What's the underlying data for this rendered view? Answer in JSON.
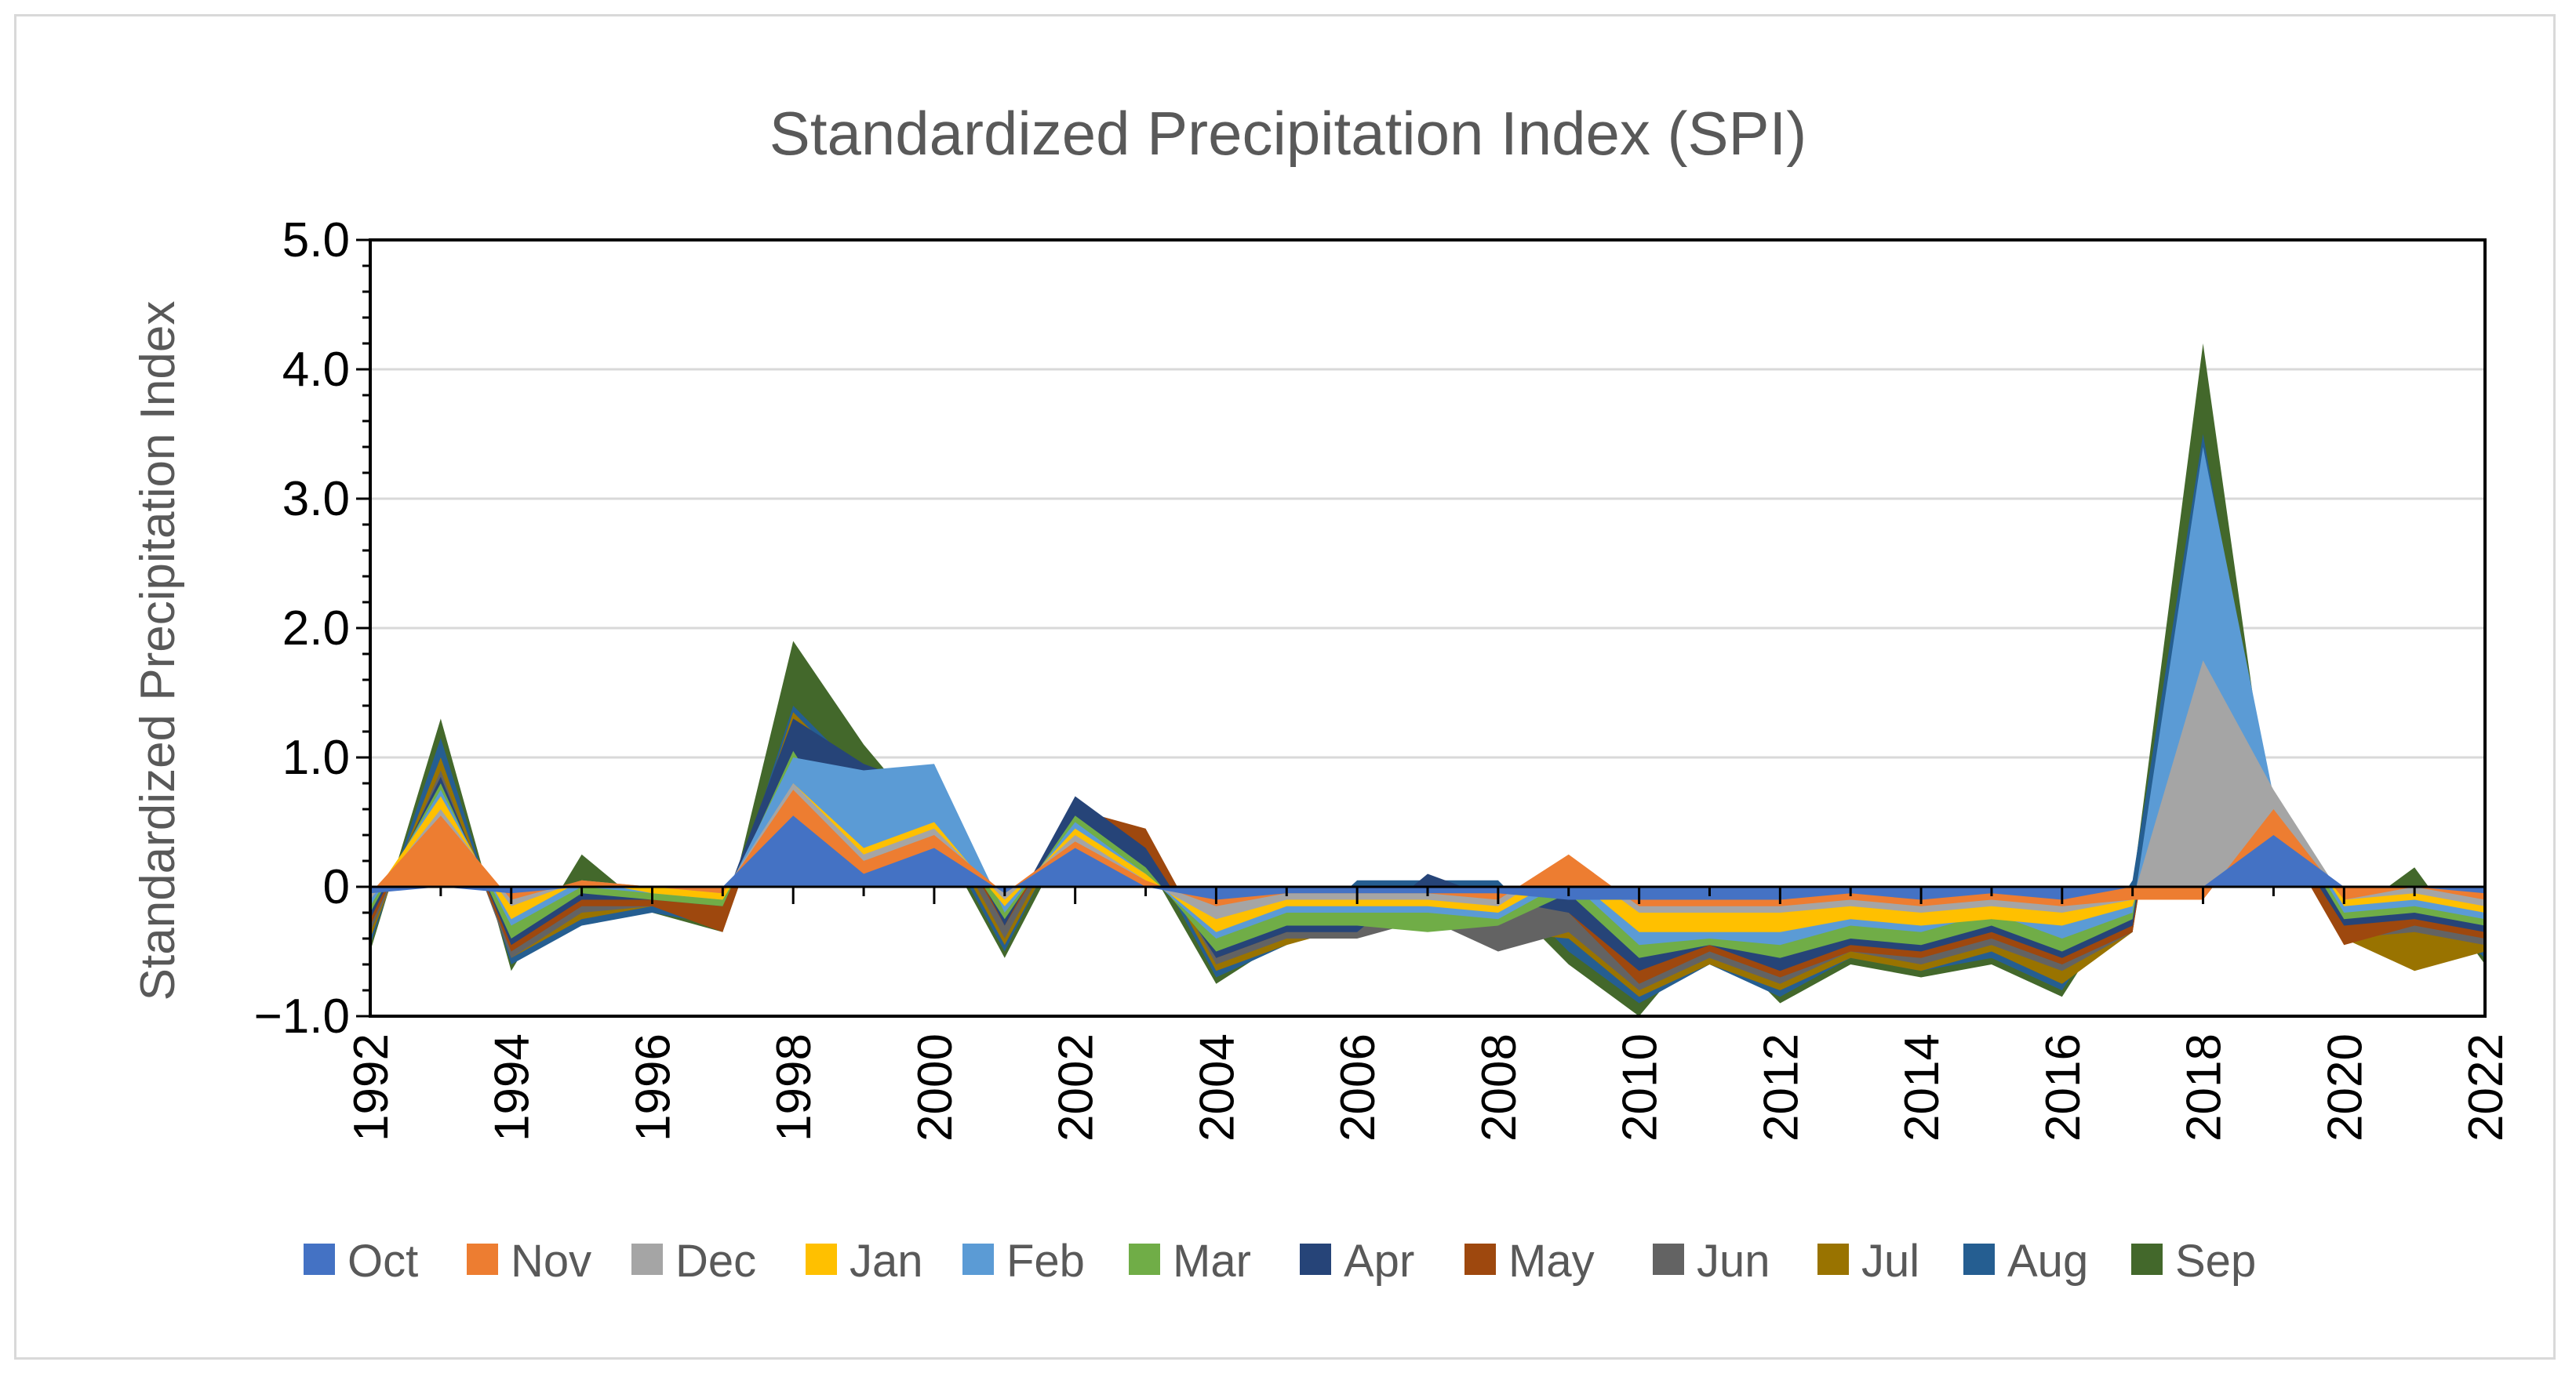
{
  "chart_data": {
    "type": "area",
    "title": "Standardized Precipitation Index (SPI)",
    "xlabel": "",
    "ylabel": "Standardized Precipitation Index",
    "ylim": [
      -1.0,
      5.0
    ],
    "xlim": [
      1992,
      2022
    ],
    "yticks": [
      {
        "value": 5,
        "label": "5.0"
      },
      {
        "value": 4,
        "label": "4.0"
      },
      {
        "value": 3,
        "label": "3.0"
      },
      {
        "value": 2,
        "label": "2.0"
      },
      {
        "value": 1,
        "label": "1.0"
      },
      {
        "value": 0,
        "label": "0"
      },
      {
        "value": -1,
        "label": "−1.0"
      }
    ],
    "xticks": [
      "1992",
      "1994",
      "1996",
      "1998",
      "2000",
      "2002",
      "2004",
      "2006",
      "2008",
      "2010",
      "2012",
      "2014",
      "2016",
      "2018",
      "2020",
      "2022"
    ],
    "grid": true,
    "legend_position": "bottom",
    "x": [
      1992,
      1993,
      1994,
      1995,
      1996,
      1997,
      1998,
      1999,
      2000,
      2001,
      2002,
      2003,
      2004,
      2005,
      2006,
      2007,
      2008,
      2009,
      2010,
      2011,
      2012,
      2013,
      2014,
      2015,
      2016,
      2017,
      2018,
      2019,
      2020,
      2021,
      2022
    ],
    "series": [
      {
        "name": "Oct",
        "color": "#4472C4",
        "values": [
          -0.05,
          0.0,
          -0.05,
          0.0,
          0.0,
          0.0,
          0.55,
          0.1,
          0.3,
          -0.05,
          0.3,
          0.0,
          -0.1,
          -0.05,
          -0.05,
          -0.05,
          -0.05,
          -0.1,
          -0.1,
          -0.1,
          -0.1,
          -0.05,
          -0.1,
          -0.05,
          -0.1,
          0.0,
          0.0,
          0.4,
          0.0,
          0.0,
          -0.05
        ]
      },
      {
        "name": "Nov",
        "color": "#ED7D31",
        "values": [
          -0.05,
          0.55,
          -0.1,
          0.05,
          0.0,
          -0.05,
          0.75,
          0.2,
          0.4,
          -0.05,
          0.35,
          0.05,
          -0.15,
          -0.05,
          -0.05,
          -0.05,
          -0.1,
          0.25,
          -0.15,
          -0.15,
          -0.15,
          -0.1,
          -0.15,
          -0.1,
          -0.15,
          -0.1,
          -0.1,
          0.6,
          -0.1,
          0.0,
          -0.1
        ]
      },
      {
        "name": "Dec",
        "color": "#A5A5A5",
        "values": [
          -0.1,
          0.6,
          -0.15,
          0.05,
          0.0,
          -0.05,
          0.8,
          0.25,
          0.45,
          -0.1,
          0.4,
          0.05,
          -0.25,
          -0.1,
          -0.1,
          -0.1,
          -0.15,
          0.2,
          -0.2,
          -0.2,
          -0.2,
          -0.15,
          -0.2,
          -0.15,
          -0.2,
          -0.1,
          1.75,
          0.75,
          -0.1,
          -0.05,
          -0.15
        ]
      },
      {
        "name": "Jan",
        "color": "#FFC000",
        "values": [
          -0.1,
          0.7,
          -0.25,
          0.05,
          -0.05,
          -0.1,
          0.8,
          0.3,
          0.5,
          -0.15,
          0.45,
          0.1,
          -0.35,
          -0.15,
          -0.15,
          -0.15,
          -0.2,
          0.1,
          -0.35,
          -0.35,
          -0.35,
          -0.25,
          -0.3,
          -0.25,
          -0.3,
          -0.15,
          1.7,
          0.7,
          -0.15,
          -0.1,
          -0.2
        ]
      },
      {
        "name": "Feb",
        "color": "#5B9BD5",
        "values": [
          -0.15,
          0.75,
          -0.3,
          0.0,
          -0.05,
          -0.1,
          1.0,
          0.9,
          0.95,
          -0.2,
          0.5,
          0.1,
          -0.4,
          -0.2,
          -0.2,
          -0.2,
          -0.25,
          0.05,
          -0.45,
          -0.4,
          -0.45,
          -0.3,
          -0.35,
          -0.2,
          -0.4,
          -0.2,
          3.4,
          0.7,
          -0.2,
          -0.15,
          -0.25
        ]
      },
      {
        "name": "Mar",
        "color": "#70AD47",
        "values": [
          -0.2,
          0.8,
          -0.4,
          -0.05,
          -0.1,
          -0.15,
          1.05,
          0.2,
          0.6,
          -0.25,
          0.55,
          0.15,
          -0.5,
          -0.3,
          -0.3,
          -0.35,
          -0.3,
          -0.05,
          -0.55,
          -0.45,
          -0.55,
          -0.4,
          -0.45,
          -0.3,
          -0.5,
          -0.25,
          3.2,
          0.65,
          -0.25,
          -0.2,
          -0.3
        ]
      },
      {
        "name": "Apr",
        "color": "#264478",
        "values": [
          -0.25,
          0.85,
          -0.45,
          -0.1,
          -0.1,
          -0.15,
          1.3,
          0.95,
          0.75,
          -0.3,
          0.7,
          0.3,
          -0.55,
          -0.35,
          -0.35,
          0.1,
          -0.1,
          -0.2,
          -0.65,
          -0.45,
          -0.65,
          -0.45,
          -0.5,
          -0.35,
          -0.55,
          -0.3,
          3.0,
          0.55,
          -0.3,
          -0.25,
          -0.35
        ]
      },
      {
        "name": "May",
        "color": "#9E480E",
        "values": [
          -0.3,
          0.85,
          -0.5,
          -0.15,
          -0.15,
          -0.35,
          1.2,
          0.9,
          0.65,
          -0.3,
          0.6,
          0.45,
          -0.55,
          -0.35,
          -0.25,
          -0.1,
          -0.05,
          -0.2,
          -0.75,
          -0.5,
          -0.7,
          -0.5,
          -0.55,
          -0.4,
          -0.6,
          -0.35,
          3.0,
          0.5,
          -0.45,
          -0.3,
          -0.4
        ]
      },
      {
        "name": "Jun",
        "color": "#636363",
        "values": [
          -0.35,
          0.9,
          -0.55,
          -0.2,
          -0.15,
          -0.25,
          1.3,
          0.85,
          0.6,
          -0.4,
          0.6,
          0.4,
          -0.6,
          -0.4,
          -0.4,
          -0.25,
          -0.5,
          -0.35,
          -0.8,
          -0.55,
          -0.75,
          -0.5,
          -0.6,
          -0.45,
          -0.65,
          -0.35,
          3.1,
          0.5,
          -0.4,
          -0.35,
          -0.45
        ]
      },
      {
        "name": "Jul",
        "color": "#997300",
        "values": [
          -0.4,
          1.0,
          -0.55,
          -0.25,
          -0.15,
          -0.3,
          1.35,
          0.8,
          0.55,
          -0.45,
          0.55,
          0.35,
          -0.65,
          -0.45,
          -0.3,
          -0.3,
          -0.35,
          -0.4,
          -0.85,
          -0.6,
          -0.8,
          -0.55,
          -0.65,
          -0.5,
          -0.75,
          -0.35,
          3.2,
          0.45,
          -0.4,
          -0.65,
          -0.5
        ]
      },
      {
        "name": "Aug",
        "color": "#255E91",
        "values": [
          -0.45,
          1.15,
          -0.6,
          -0.3,
          -0.2,
          -0.3,
          1.4,
          0.85,
          0.5,
          -0.5,
          0.6,
          0.3,
          -0.7,
          -0.45,
          0.05,
          0.05,
          0.05,
          -0.5,
          -0.9,
          -0.6,
          -0.85,
          -0.55,
          -0.65,
          -0.55,
          -0.8,
          0.05,
          3.5,
          0.4,
          -0.3,
          -0.1,
          -0.55
        ]
      },
      {
        "name": "Sep",
        "color": "#43682B",
        "values": [
          -0.5,
          1.3,
          -0.65,
          0.25,
          -0.2,
          -0.35,
          1.9,
          1.1,
          0.45,
          -0.55,
          0.5,
          0.2,
          -0.75,
          -0.4,
          0.0,
          0.0,
          -0.05,
          -0.6,
          -1.0,
          -0.35,
          -0.9,
          -0.6,
          -0.7,
          -0.6,
          -0.85,
          0.0,
          4.2,
          0.35,
          -0.25,
          0.15,
          -0.6
        ]
      }
    ]
  }
}
